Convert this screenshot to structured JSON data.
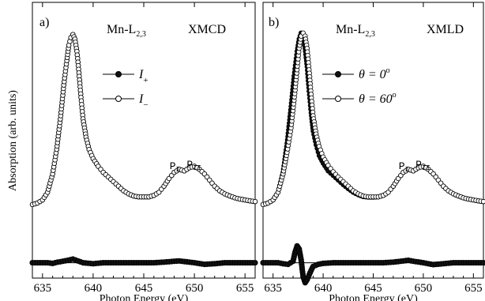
{
  "figure": {
    "ylabel": "Absorption (arb. units)"
  },
  "chart_data": [
    {
      "type": "line",
      "panel_label": "a)",
      "edge_label": "Mn-L",
      "edge_sub": "2,3",
      "mode_label": "XMCD",
      "xlabel": "Photon Energy (eV)",
      "xlim": [
        634,
        656
      ],
      "xticks": [
        635,
        640,
        645,
        650,
        655
      ],
      "ylim": [
        -0.5,
        8.5
      ],
      "grid": false,
      "legend_position": "upper-right",
      "peak_labels": [
        {
          "text": "P",
          "sub": "I",
          "x": 648.3,
          "y": 2.75
        },
        {
          "text": "P",
          "sub": "II",
          "x": 650.2,
          "y": 2.8
        }
      ],
      "series": [
        {
          "name": "I",
          "name_sub": "+",
          "marker": "filled-circle",
          "x": [
            634.0,
            634.5,
            635.0,
            635.5,
            636.0,
            636.4,
            636.8,
            637.1,
            637.4,
            637.6,
            637.8,
            638.0,
            638.2,
            638.4,
            638.6,
            638.8,
            639.0,
            639.3,
            639.6,
            640.0,
            640.5,
            641.0,
            641.5,
            642.0,
            642.5,
            643.0,
            643.5,
            644.0,
            644.5,
            645.0,
            645.5,
            646.0,
            646.5,
            647.0,
            647.5,
            648.0,
            648.5,
            649.0,
            649.5,
            650.0,
            650.5,
            651.0,
            651.5,
            652.0,
            652.5,
            653.0,
            653.5,
            654.0,
            654.5,
            655.0,
            655.5,
            656.0
          ],
          "y": [
            1.9,
            1.95,
            2.05,
            2.3,
            2.9,
            3.7,
            4.8,
            5.8,
            6.6,
            7.1,
            7.35,
            7.45,
            7.3,
            6.9,
            6.2,
            5.4,
            4.7,
            4.1,
            3.7,
            3.4,
            3.15,
            2.95,
            2.8,
            2.65,
            2.5,
            2.35,
            2.25,
            2.18,
            2.15,
            2.15,
            2.15,
            2.2,
            2.3,
            2.5,
            2.75,
            2.95,
            3.05,
            3.0,
            3.1,
            3.15,
            3.05,
            2.9,
            2.7,
            2.5,
            2.35,
            2.25,
            2.18,
            2.12,
            2.08,
            2.05,
            2.02,
            2.0
          ]
        },
        {
          "name": "I",
          "name_sub": "−",
          "marker": "open-circle",
          "x": [
            634.0,
            634.5,
            635.0,
            635.5,
            636.0,
            636.4,
            636.8,
            637.1,
            637.4,
            637.6,
            637.8,
            638.0,
            638.2,
            638.4,
            638.6,
            638.8,
            639.0,
            639.3,
            639.6,
            640.0,
            640.5,
            641.0,
            641.5,
            642.0,
            642.5,
            643.0,
            643.5,
            644.0,
            644.5,
            645.0,
            645.5,
            646.0,
            646.5,
            647.0,
            647.5,
            648.0,
            648.5,
            649.0,
            649.5,
            650.0,
            650.5,
            651.0,
            651.5,
            652.0,
            652.5,
            653.0,
            653.5,
            654.0,
            654.5,
            655.0,
            655.5,
            656.0
          ],
          "y": [
            1.9,
            1.95,
            2.05,
            2.3,
            2.9,
            3.7,
            4.8,
            5.8,
            6.6,
            7.1,
            7.35,
            7.45,
            7.3,
            6.9,
            6.2,
            5.4,
            4.7,
            4.1,
            3.7,
            3.4,
            3.15,
            2.95,
            2.8,
            2.65,
            2.5,
            2.35,
            2.25,
            2.18,
            2.15,
            2.15,
            2.15,
            2.2,
            2.3,
            2.5,
            2.75,
            2.95,
            3.05,
            3.0,
            3.1,
            3.15,
            3.05,
            2.9,
            2.7,
            2.5,
            2.35,
            2.25,
            2.18,
            2.12,
            2.08,
            2.05,
            2.02,
            2.0
          ]
        },
        {
          "name": "",
          "marker": "filled-circle-dense",
          "x": [
            634.0,
            634.5,
            635.0,
            635.5,
            636.0,
            636.5,
            637.0,
            637.5,
            638.0,
            638.5,
            639.0,
            640.0,
            641.0,
            642.0,
            643.0,
            644.0,
            645.0,
            646.0,
            647.0,
            648.0,
            648.5,
            649.0,
            650.0,
            651.0,
            652.0,
            653.0,
            654.0,
            655.0,
            656.0
          ],
          "y": [
            0.0,
            0.0,
            0.0,
            0.0,
            -0.02,
            0.02,
            0.05,
            0.08,
            0.12,
            0.06,
            0.0,
            -0.03,
            0.0,
            0.0,
            0.0,
            0.0,
            0.0,
            0.0,
            0.02,
            0.05,
            0.06,
            0.04,
            0.0,
            -0.05,
            -0.03,
            0.0,
            0.0,
            0.0,
            0.0
          ]
        }
      ]
    },
    {
      "type": "line",
      "panel_label": "b)",
      "edge_label": "Mn-L",
      "edge_sub": "2,3",
      "mode_label": "XMLD",
      "xlabel": "Photon Energy (eV)",
      "xlim": [
        634,
        656
      ],
      "xticks": [
        635,
        640,
        645,
        650,
        655
      ],
      "ylim": [
        -0.5,
        8.5
      ],
      "grid": false,
      "legend_position": "upper-right",
      "peak_labels": [
        {
          "text": "P",
          "sub": "I",
          "x": 648.3,
          "y": 2.75
        },
        {
          "text": "P",
          "sub": "II",
          "x": 650.2,
          "y": 2.8
        }
      ],
      "series": [
        {
          "name": "θ = 0",
          "name_sup": "o",
          "marker": "filled-circle",
          "x": [
            634.0,
            634.5,
            635.0,
            635.5,
            636.0,
            636.4,
            636.8,
            637.1,
            637.4,
            637.6,
            637.8,
            638.0,
            638.2,
            638.4,
            638.6,
            638.8,
            639.0,
            639.3,
            639.6,
            640.0,
            640.5,
            641.0,
            641.5,
            642.0,
            642.5,
            643.0,
            643.5,
            644.0,
            644.5,
            645.0,
            645.5,
            646.0,
            646.5,
            647.0,
            647.5,
            648.0,
            648.5,
            649.0,
            649.5,
            650.0,
            650.5,
            651.0,
            651.5,
            652.0,
            652.5,
            653.0,
            653.5,
            654.0,
            654.5,
            655.0,
            655.5,
            656.0
          ],
          "y": [
            1.9,
            1.95,
            2.05,
            2.3,
            2.95,
            3.9,
            5.1,
            6.1,
            6.9,
            7.3,
            7.5,
            7.4,
            7.0,
            6.4,
            5.6,
            4.9,
            4.3,
            3.85,
            3.5,
            3.25,
            3.0,
            2.85,
            2.7,
            2.55,
            2.42,
            2.3,
            2.22,
            2.16,
            2.14,
            2.14,
            2.15,
            2.2,
            2.3,
            2.5,
            2.75,
            2.95,
            3.05,
            3.0,
            3.1,
            3.15,
            3.05,
            2.9,
            2.7,
            2.5,
            2.35,
            2.25,
            2.18,
            2.12,
            2.08,
            2.05,
            2.02,
            2.0
          ]
        },
        {
          "name": "θ = 60",
          "name_sup": "o",
          "marker": "open-circle",
          "x": [
            634.0,
            634.5,
            635.0,
            635.5,
            636.0,
            636.4,
            636.8,
            637.1,
            637.4,
            637.6,
            637.8,
            638.0,
            638.2,
            638.4,
            638.6,
            638.8,
            639.0,
            639.3,
            639.6,
            640.0,
            640.5,
            641.0,
            641.5,
            642.0,
            642.5,
            643.0,
            643.5,
            644.0,
            644.5,
            645.0,
            645.5,
            646.0,
            646.5,
            647.0,
            647.5,
            648.0,
            648.5,
            649.0,
            649.5,
            650.0,
            650.5,
            651.0,
            651.5,
            652.0,
            652.5,
            653.0,
            653.5,
            654.0,
            654.5,
            655.0,
            655.5,
            656.0
          ],
          "y": [
            1.9,
            1.95,
            2.05,
            2.3,
            2.9,
            3.6,
            4.4,
            5.3,
            6.3,
            7.0,
            7.4,
            7.5,
            7.4,
            7.0,
            6.3,
            5.5,
            4.8,
            4.2,
            3.8,
            3.45,
            3.18,
            2.97,
            2.8,
            2.65,
            2.5,
            2.35,
            2.25,
            2.18,
            2.15,
            2.15,
            2.15,
            2.2,
            2.3,
            2.5,
            2.75,
            2.95,
            3.05,
            3.0,
            3.1,
            3.15,
            3.05,
            2.9,
            2.7,
            2.5,
            2.35,
            2.25,
            2.18,
            2.12,
            2.08,
            2.05,
            2.02,
            2.0
          ]
        },
        {
          "name": "",
          "marker": "filled-circle-dense",
          "x": [
            634.0,
            634.5,
            635.0,
            635.5,
            636.0,
            636.5,
            637.0,
            637.2,
            637.4,
            637.6,
            637.8,
            638.0,
            638.2,
            638.4,
            638.6,
            638.8,
            639.0,
            639.5,
            640.0,
            641.0,
            642.0,
            643.0,
            644.0,
            645.0,
            646.0,
            647.0,
            648.0,
            648.5,
            649.0,
            650.0,
            651.0,
            652.0,
            653.0,
            654.0,
            655.0,
            656.0
          ],
          "y": [
            0.0,
            0.0,
            0.0,
            0.0,
            -0.03,
            -0.05,
            0.05,
            0.35,
            0.55,
            0.45,
            0.1,
            -0.45,
            -0.65,
            -0.55,
            -0.4,
            -0.25,
            -0.12,
            -0.05,
            -0.02,
            0.0,
            0.0,
            0.0,
            0.0,
            0.0,
            0.0,
            0.02,
            0.06,
            0.08,
            0.05,
            0.0,
            -0.06,
            -0.03,
            0.0,
            0.0,
            0.0,
            0.0
          ]
        }
      ]
    }
  ]
}
